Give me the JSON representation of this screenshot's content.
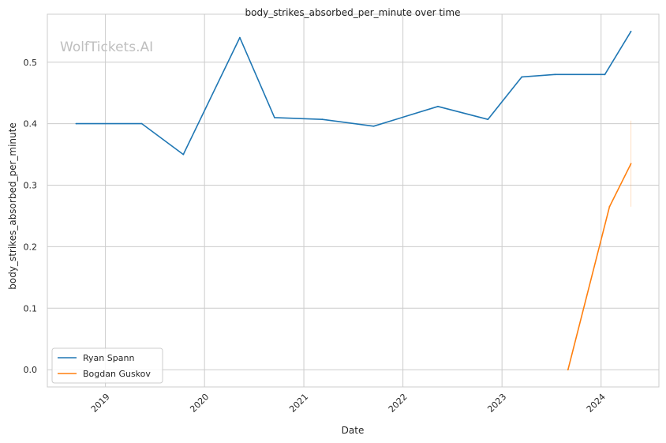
{
  "chart_data": {
    "type": "line",
    "title": "body_strikes_absorbed_per_minute over time",
    "xlabel": "Date",
    "ylabel": "body_strikes_absorbed_per_minute",
    "watermark": "WolfTickets.AI",
    "xlim": [
      "2018-06-01",
      "2024-08-01"
    ],
    "ylim": [
      -0.028,
      0.578
    ],
    "x_ticks": [
      "2019",
      "2020",
      "2021",
      "2022",
      "2023",
      "2024"
    ],
    "y_ticks": [
      "0.0",
      "0.1",
      "0.2",
      "0.3",
      "0.4",
      "0.5"
    ],
    "grid": true,
    "legend_position": "lower-left",
    "series": [
      {
        "name": "Ryan Spann",
        "color": "#1f77b4",
        "x": [
          "2018-09-15",
          "2019-05-15",
          "2019-10-15",
          "2020-05-10",
          "2020-09-15",
          "2021-03-10",
          "2021-09-15",
          "2022-05-10",
          "2022-11-10",
          "2023-03-15",
          "2023-07-15",
          "2024-01-15",
          "2024-04-20"
        ],
        "y": [
          0.4,
          0.4,
          0.35,
          0.54,
          0.41,
          0.407,
          0.396,
          0.428,
          0.407,
          0.476,
          0.48,
          0.48,
          0.55
        ]
      },
      {
        "name": "Bogdan Guskov",
        "color": "#ff7f0e",
        "x": [
          "2023-09-01",
          "2024-02-01",
          "2024-04-20"
        ],
        "y": [
          0.0,
          0.265,
          0.335
        ],
        "band": {
          "x": "2024-04-20",
          "low": 0.265,
          "high": 0.405
        }
      }
    ]
  }
}
